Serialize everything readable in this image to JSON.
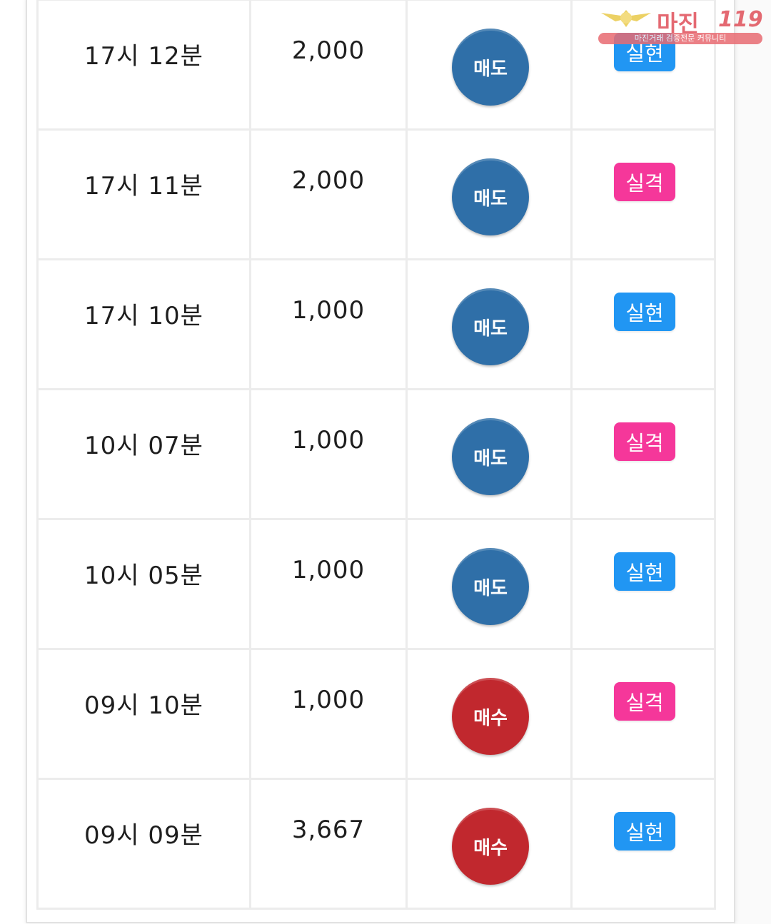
{
  "colors": {
    "sell": "#2f6fa8",
    "buy": "#c1282e",
    "realized": "#2196f3",
    "failed": "#f5379a"
  },
  "watermark": {
    "title": "마진",
    "number": "119",
    "subtitle": "마진거래 검증전문 커뮤니티"
  },
  "rows": [
    {
      "time": "17시 12분",
      "amount": "2,000",
      "side": "매도",
      "side_type": "sell",
      "result": "실현",
      "result_type": "realized"
    },
    {
      "time": "17시 11분",
      "amount": "2,000",
      "side": "매도",
      "side_type": "sell",
      "result": "실격",
      "result_type": "failed"
    },
    {
      "time": "17시 10분",
      "amount": "1,000",
      "side": "매도",
      "side_type": "sell",
      "result": "실현",
      "result_type": "realized"
    },
    {
      "time": "10시 07분",
      "amount": "1,000",
      "side": "매도",
      "side_type": "sell",
      "result": "실격",
      "result_type": "failed"
    },
    {
      "time": "10시 05분",
      "amount": "1,000",
      "side": "매도",
      "side_type": "sell",
      "result": "실현",
      "result_type": "realized"
    },
    {
      "time": "09시 10분",
      "amount": "1,000",
      "side": "매수",
      "side_type": "buy",
      "result": "실격",
      "result_type": "failed"
    },
    {
      "time": "09시 09분",
      "amount": "3,667",
      "side": "매수",
      "side_type": "buy",
      "result": "실현",
      "result_type": "realized"
    }
  ]
}
